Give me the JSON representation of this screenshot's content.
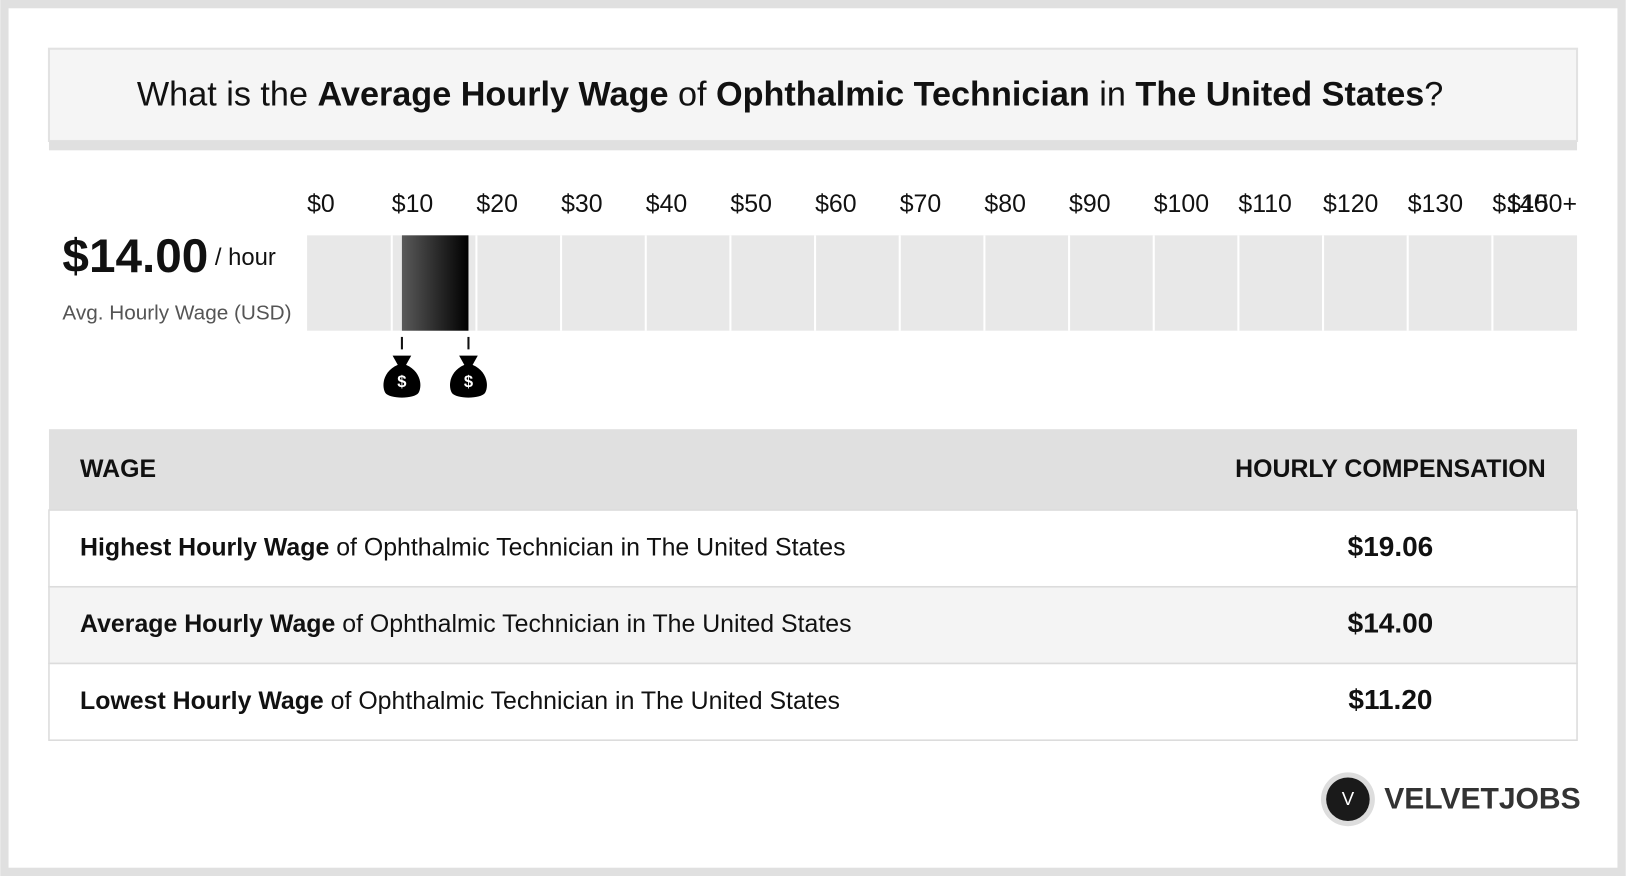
{
  "header": {
    "title_parts": [
      "What is the ",
      "Average Hourly Wage",
      " of ",
      "Ophthalmic Technician",
      " in ",
      "The United States",
      "?"
    ]
  },
  "summary": {
    "value": "$14.00",
    "unit": " / hour",
    "caption": "Avg. Hourly Wage (USD)"
  },
  "scale": {
    "xlim": [
      0,
      150
    ],
    "xticks": [
      {
        "value": 0,
        "label": "$0"
      },
      {
        "value": 10,
        "label": "$10"
      },
      {
        "value": 20,
        "label": "$20"
      },
      {
        "value": 30,
        "label": "$30"
      },
      {
        "value": 40,
        "label": "$40"
      },
      {
        "value": 50,
        "label": "$50"
      },
      {
        "value": 60,
        "label": "$60"
      },
      {
        "value": 70,
        "label": "$70"
      },
      {
        "value": 80,
        "label": "$80"
      },
      {
        "value": 90,
        "label": "$90"
      },
      {
        "value": 100,
        "label": "$100"
      },
      {
        "value": 110,
        "label": "$110"
      },
      {
        "value": 120,
        "label": "$120"
      },
      {
        "value": 130,
        "label": "$130"
      },
      {
        "value": 140,
        "label": "$140"
      },
      {
        "value": 150,
        "label": "$150+"
      }
    ],
    "range": {
      "low": 11.2,
      "high": 19.06
    },
    "icon_label": "$"
  },
  "table": {
    "headers": [
      "WAGE",
      "HOURLY COMPENSATION"
    ],
    "rows": [
      [
        [
          "Highest Hourly Wage",
          " of Ophthalmic Technician in The United States"
        ],
        "$19.06"
      ],
      [
        [
          "Average Hourly Wage",
          " of Ophthalmic Technician in The United States"
        ],
        "$14.00"
      ],
      [
        [
          "Lowest Hourly Wage",
          " of Ophthalmic Technician in The United States"
        ],
        "$11.20"
      ]
    ]
  },
  "logo": {
    "mark": "V",
    "name": "VELVETJOBS"
  }
}
